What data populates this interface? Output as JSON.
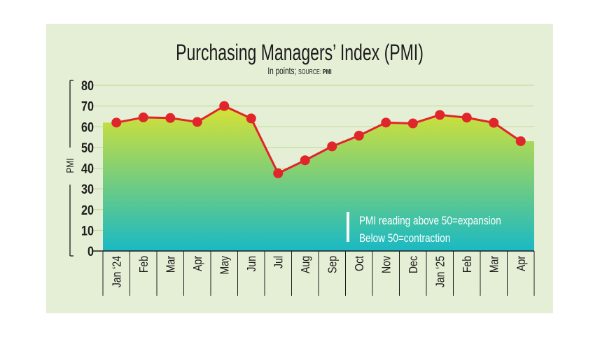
{
  "chart_data": {
    "type": "area",
    "title": "Purchasing Managers’ Index (PMI)",
    "subtitle": {
      "prefix": "In points; ",
      "source_label": "SOURCE: ",
      "source": "PMI"
    },
    "ylabel": "PMI",
    "ylim": [
      0,
      80
    ],
    "yticks": [
      0,
      10,
      20,
      30,
      40,
      50,
      60,
      70,
      80
    ],
    "grid": true,
    "categories": [
      "Jan ‘24",
      "Feb",
      "Mar",
      "Apr",
      "May",
      "Jun",
      "Jul",
      "Aug",
      "Sep",
      "Oct",
      "Nov",
      "Dec",
      "Jan ‘25",
      "Feb",
      "Mar",
      "Apr"
    ],
    "series": [
      {
        "values": [
          62.0,
          64.5,
          64.2,
          62.3,
          70.0,
          64.0,
          37.5,
          43.8,
          50.5,
          55.7,
          62.0,
          61.6,
          65.7,
          64.4,
          61.9,
          53.0
        ]
      }
    ],
    "annotation": {
      "lines": [
        "PMI reading above 50=expansion",
        "Below 50=contraction"
      ]
    },
    "colors": {
      "line": "#e0252b",
      "marker": "#e0252b",
      "grid": "#b9d98f",
      "fill_top": "#d8e233",
      "fill_bottom": "#19b9c4",
      "text": "#1c1c1c",
      "annotation_text": "#ffffff"
    }
  }
}
